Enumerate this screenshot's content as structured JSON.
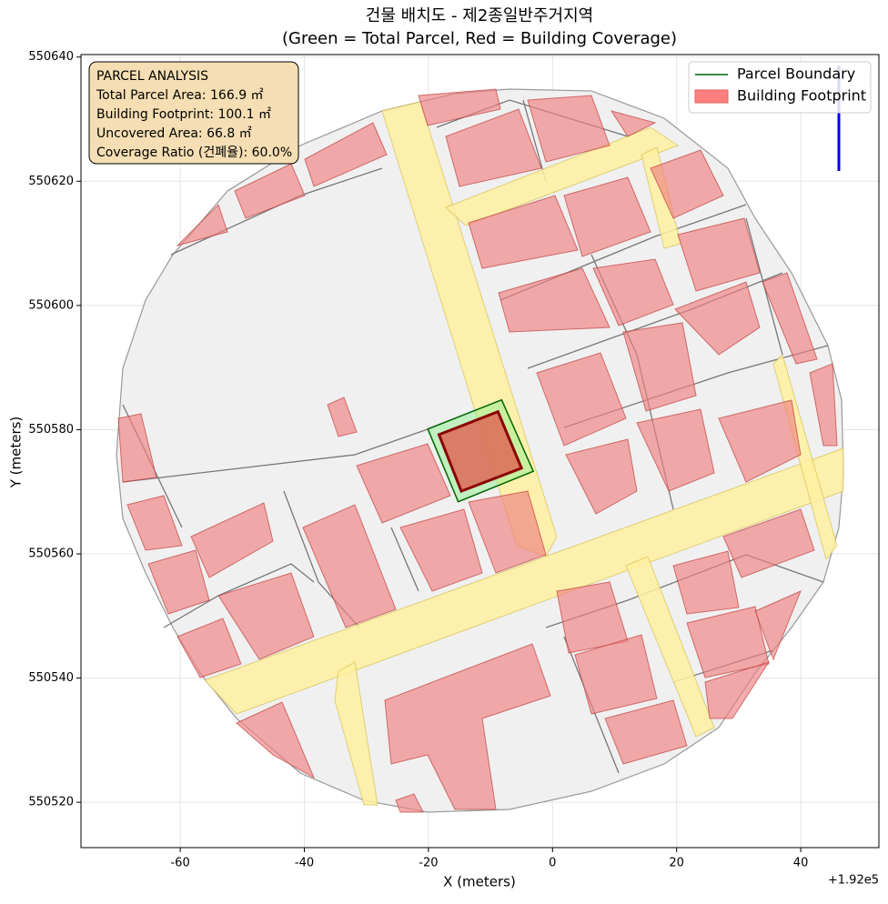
{
  "chart_data": {
    "type": "polygon",
    "title": "건물 배치도 - 제2종일반주거지역",
    "subtitle": "(Green = Total Parcel, Red = Building Coverage)",
    "x_label": "X (meters)",
    "y_label": "Y (meters)",
    "x_offset_label": "+1.92e5",
    "xlim": [
      -76,
      52.6
    ],
    "ylim": [
      550512.7,
      550640.4
    ],
    "xticks": [
      -60,
      -40,
      -20,
      0,
      20,
      40
    ],
    "yticks": [
      550520,
      550540,
      550560,
      550580,
      550600,
      550620,
      550640
    ],
    "grid": true,
    "legend_position": "upper right",
    "annotation": [
      "PARCEL ANALYSIS",
      "Total Parcel Area: 166.9 ㎡",
      "Building Footprint: 100.1 ㎡",
      "Uncovered Area: 66.8 ㎡",
      "Coverage Ratio (건폐율): 60.0%"
    ],
    "series": [
      {
        "name": "Parcel Boundary",
        "color": "#006400",
        "fill": "#90ee90",
        "x": [
          -20.1,
          -8.2,
          -3.1,
          -15.2
        ],
        "y": [
          550580.1,
          550584.8,
          550573.3,
          550568.4
        ]
      },
      {
        "name": "Building Footprint",
        "color": "#8b0000",
        "fill": "#e06050",
        "x": [
          -18.3,
          -8.8,
          -5.0,
          -14.7
        ],
        "y": [
          550579.2,
          550582.9,
          550573.8,
          550570.1
        ]
      }
    ]
  }
}
